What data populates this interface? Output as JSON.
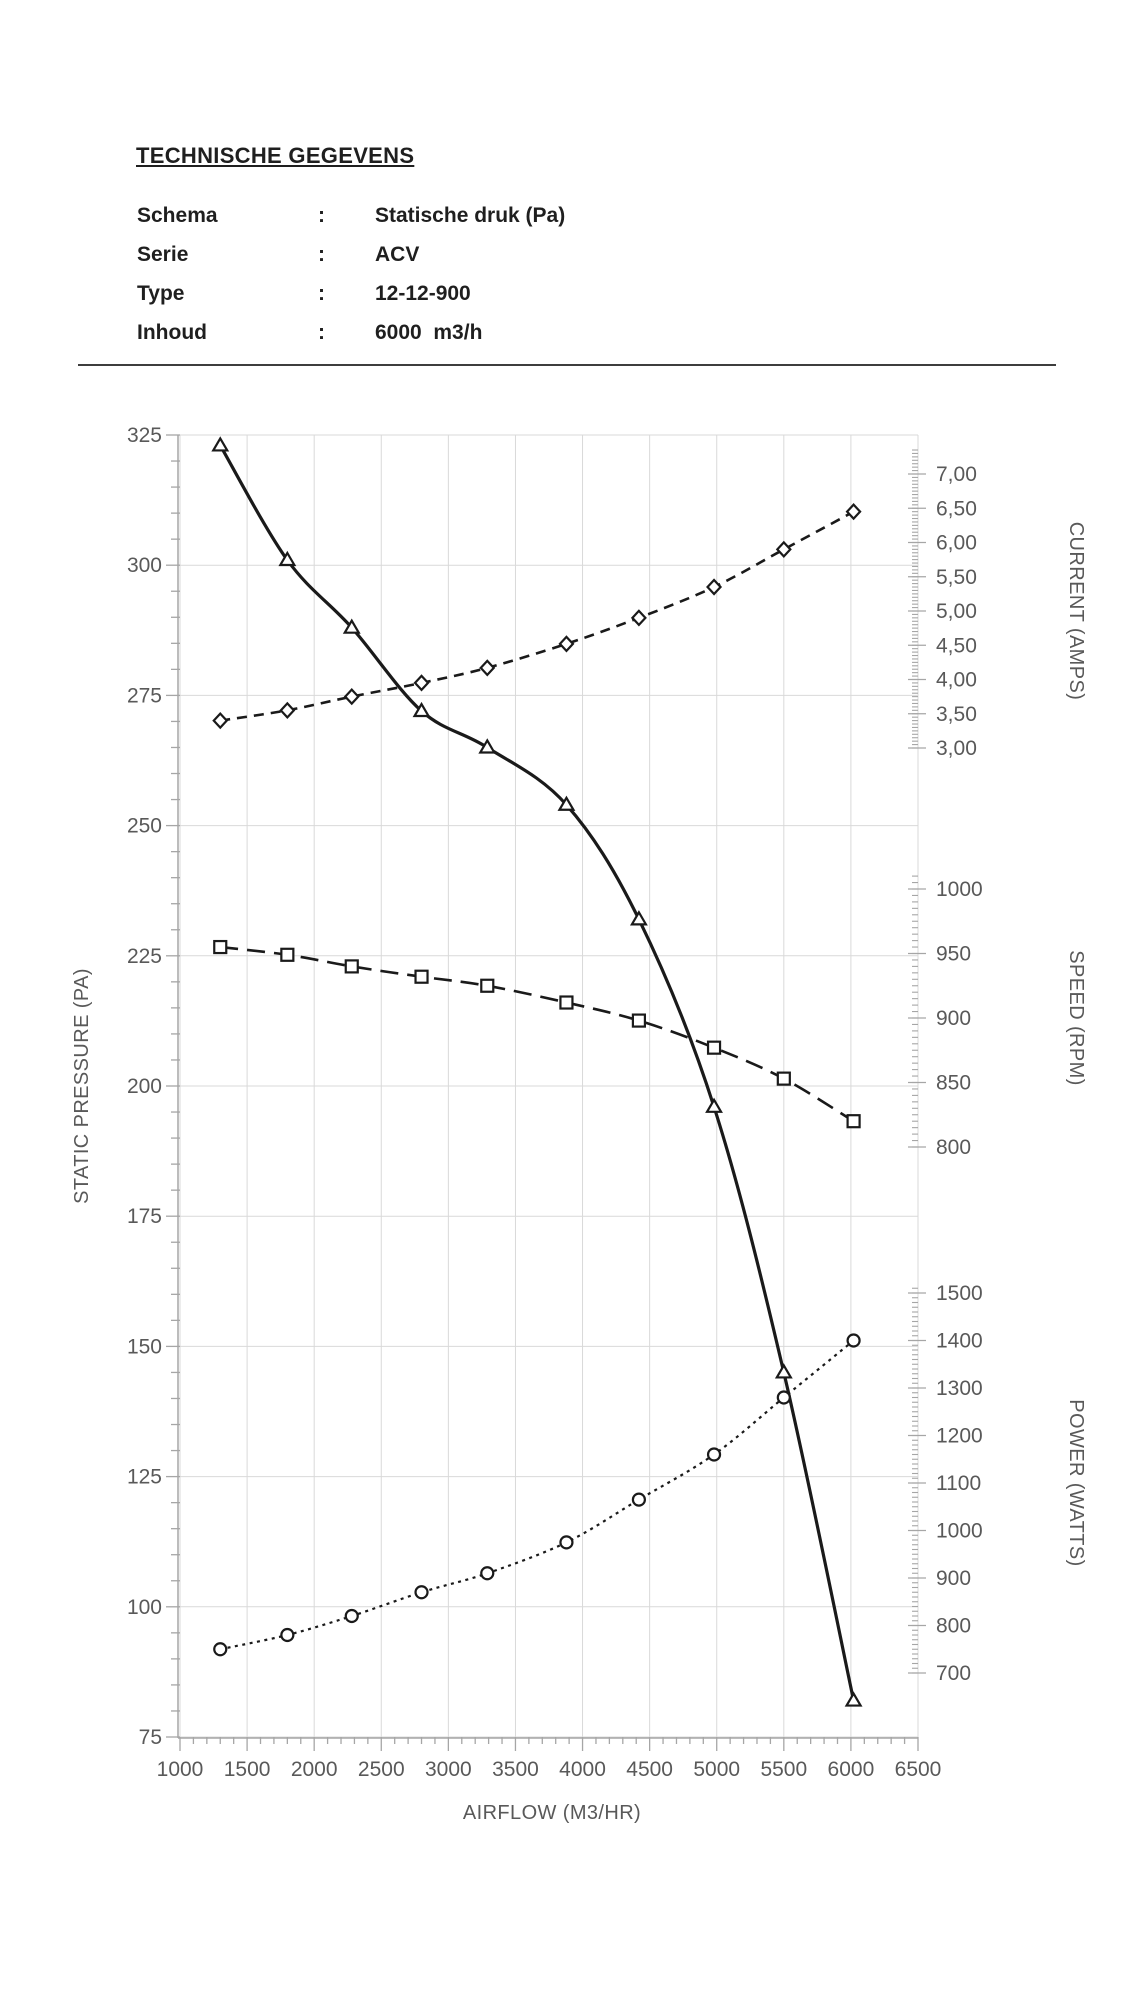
{
  "header": {
    "title": "TECHNISCHE GEGEVENS",
    "colon": ":",
    "rows": [
      {
        "label": "Schema",
        "value": "Statische druk (Pa)"
      },
      {
        "label": "Serie",
        "value": "ACV"
      },
      {
        "label": "Type",
        "value": "12-12-900"
      },
      {
        "label": "Inhoud",
        "value": "6000  m3/h"
      }
    ]
  },
  "chart_data": {
    "type": "line",
    "title": "",
    "grid": true,
    "legend_position": "none",
    "x_axis": {
      "title": "AIRFLOW (M3/HR)",
      "min": 1000,
      "max": 6500,
      "tick_step": 500,
      "minor_step": 100,
      "tick_labels": [
        "1000",
        "1500",
        "2000",
        "2500",
        "3000",
        "3500",
        "4000",
        "4500",
        "5000",
        "5500",
        "6000",
        "6500"
      ]
    },
    "y_left_axis": {
      "title": "STATIC PRESSURE (PA)",
      "min": 75,
      "max": 325,
      "tick_step": 25,
      "minor_step": 5,
      "tick_labels": [
        "325",
        "300",
        "275",
        "250",
        "225",
        "200",
        "175",
        "150",
        "125",
        "100",
        "75"
      ]
    },
    "y_right_axes": [
      {
        "id": "current",
        "title": "CURRENT (AMPS)",
        "min": 3.0,
        "max": 7.0,
        "tick_step": 0.5,
        "minor_step": 0.05,
        "minor_overshoot": 0.35,
        "tick_labels": [
          "7,00",
          "6,50",
          "6,00",
          "5,50",
          "5,00",
          "4,50",
          "4,00",
          "3,50",
          "3,00"
        ]
      },
      {
        "id": "speed",
        "title": "SPEED (RPM)",
        "min": 800,
        "max": 1000,
        "tick_step": 50,
        "minor_step": 5,
        "minor_overshoot": 10,
        "tick_labels": [
          "1000",
          "950",
          "900",
          "850",
          "800"
        ]
      },
      {
        "id": "power",
        "title": "POWER (WATTS)",
        "min": 700,
        "max": 1500,
        "tick_step": 100,
        "minor_step": 10,
        "minor_overshoot": 15,
        "tick_labels": [
          "1500",
          "1400",
          "1300",
          "1200",
          "1100",
          "1000",
          "900",
          "800",
          "700"
        ]
      }
    ],
    "x": [
      1300,
      1800,
      2280,
      2800,
      3290,
      3880,
      4420,
      4980,
      5500,
      6020
    ],
    "series": [
      {
        "name": "static-pressure",
        "axis": "pressure",
        "marker": "triangle",
        "line": "solid",
        "values": [
          323,
          301,
          288,
          272,
          265,
          254,
          232,
          196,
          145,
          82
        ]
      },
      {
        "name": "current",
        "axis": "current",
        "marker": "diamond",
        "line": "dashed",
        "values": [
          3.4,
          3.55,
          3.75,
          3.95,
          4.17,
          4.52,
          4.9,
          5.35,
          5.9,
          6.45
        ]
      },
      {
        "name": "speed",
        "axis": "speed",
        "marker": "square",
        "line": "long-dash",
        "values": [
          955,
          949,
          940,
          932,
          925,
          912,
          898,
          877,
          853,
          820
        ]
      },
      {
        "name": "power",
        "axis": "power",
        "marker": "circle",
        "line": "dotted",
        "values": [
          750,
          780,
          820,
          870,
          910,
          975,
          1065,
          1160,
          1280,
          1400
        ]
      }
    ],
    "colors": {
      "series": "#1a1a1a",
      "grid": "#d9d9d9",
      "axis_line": "#a6a6a6",
      "tick_label": "#595959",
      "marker_fill": "#ffffff"
    }
  }
}
